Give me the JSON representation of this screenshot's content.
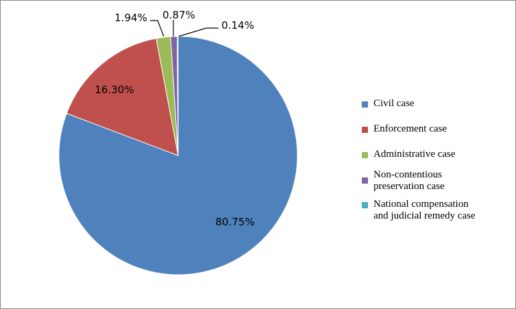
{
  "chart_data": {
    "type": "pie",
    "title": "",
    "legend_position": "right",
    "categories": [
      "Civil case",
      "Enforcement case",
      "Administrative case",
      "Non-contentious preservation case",
      "National compensation and judicial remedy case"
    ],
    "values": [
      80.75,
      16.3,
      1.94,
      0.87,
      0.14
    ],
    "labels": [
      "80.75%",
      "16.30%",
      "1.94%",
      "0.87%",
      "0.14%"
    ],
    "colors": [
      "#4F81BD",
      "#C0504D",
      "#9BBB59",
      "#8064A2",
      "#4BACC6"
    ],
    "legend": [
      {
        "lines": [
          "Civil case"
        ]
      },
      {
        "lines": [
          "Enforcement case"
        ]
      },
      {
        "lines": [
          "Administrative case"
        ]
      },
      {
        "lines": [
          "Non-contentious",
          "preservation case"
        ]
      },
      {
        "lines": [
          "National compensation",
          "and judicial remedy case"
        ]
      }
    ]
  }
}
